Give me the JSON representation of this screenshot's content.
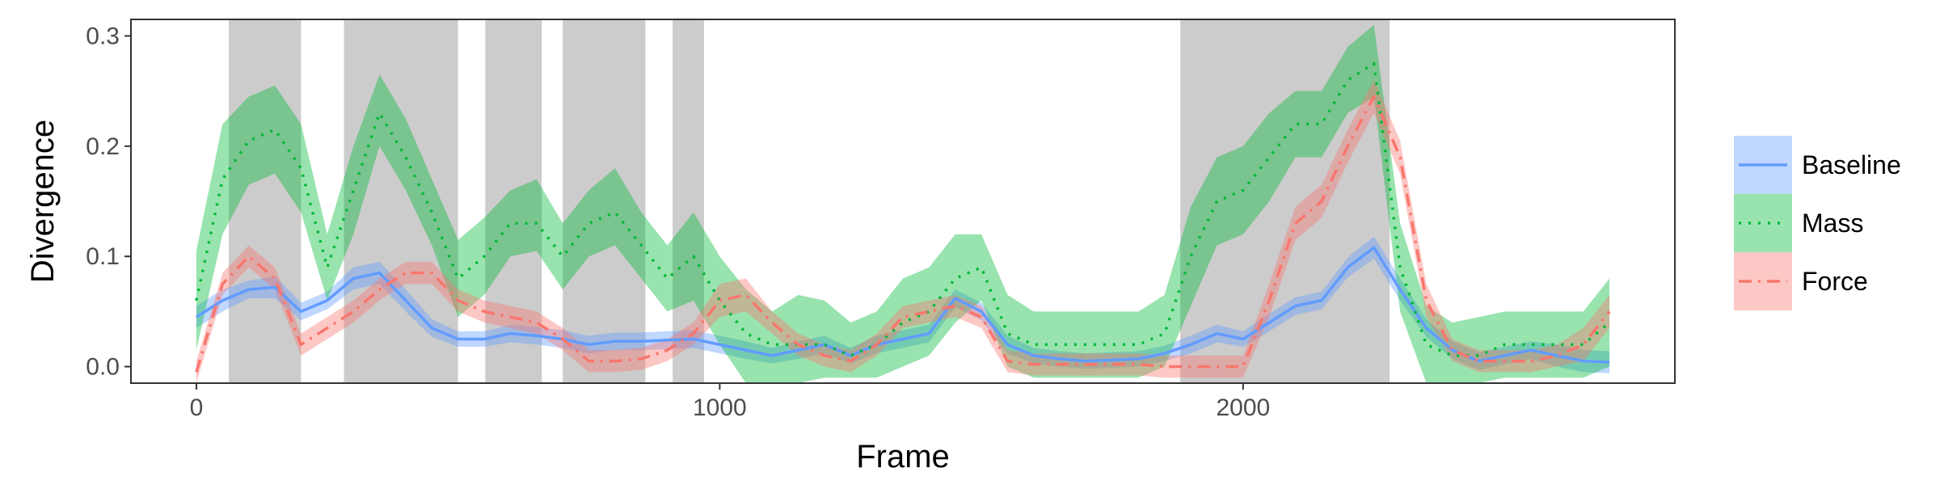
{
  "chart_data": {
    "type": "line",
    "xlabel": "Frame",
    "ylabel": "Divergence",
    "xlim": [
      -125,
      2825
    ],
    "ylim": [
      -0.015,
      0.315
    ],
    "x_ticks": [
      0,
      1000,
      2000
    ],
    "x_tick_labels": [
      "0",
      "1000",
      "2000"
    ],
    "y_ticks": [
      0.0,
      0.1,
      0.2,
      0.3
    ],
    "y_tick_labels": [
      "0.0",
      "0.1",
      "0.2",
      "0.3"
    ],
    "grid": false,
    "legend_position": "right",
    "shaded_regions": [
      [
        62,
        200
      ],
      [
        282,
        500
      ],
      [
        552,
        660
      ],
      [
        700,
        858
      ],
      [
        910,
        970
      ],
      [
        1880,
        2280
      ]
    ],
    "series": [
      {
        "name": "Baseline",
        "color": "#619CFF",
        "line_style": "solid",
        "x": [
          0,
          50,
          100,
          150,
          200,
          250,
          300,
          350,
          400,
          450,
          500,
          550,
          600,
          650,
          700,
          750,
          800,
          850,
          900,
          950,
          1000,
          1050,
          1100,
          1150,
          1200,
          1250,
          1300,
          1350,
          1400,
          1450,
          1500,
          1550,
          1600,
          1650,
          1700,
          1750,
          1800,
          1850,
          1900,
          1950,
          2000,
          2050,
          2100,
          2150,
          2200,
          2250,
          2300,
          2350,
          2400,
          2450,
          2500,
          2550,
          2600,
          2650,
          2700
        ],
        "y": [
          0.045,
          0.06,
          0.07,
          0.072,
          0.05,
          0.06,
          0.08,
          0.085,
          0.06,
          0.035,
          0.025,
          0.025,
          0.03,
          0.028,
          0.025,
          0.02,
          0.023,
          0.023,
          0.024,
          0.025,
          0.02,
          0.015,
          0.01,
          0.015,
          0.02,
          0.01,
          0.02,
          0.025,
          0.03,
          0.062,
          0.05,
          0.02,
          0.01,
          0.007,
          0.005,
          0.006,
          0.007,
          0.012,
          0.02,
          0.03,
          0.025,
          0.04,
          0.055,
          0.06,
          0.09,
          0.108,
          0.07,
          0.035,
          0.015,
          0.005,
          0.01,
          0.015,
          0.01,
          0.005,
          0.004
        ],
        "lower": [
          0.035,
          0.05,
          0.062,
          0.062,
          0.042,
          0.052,
          0.07,
          0.075,
          0.05,
          0.027,
          0.018,
          0.018,
          0.022,
          0.02,
          0.017,
          0.012,
          0.015,
          0.015,
          0.016,
          0.017,
          0.012,
          0.007,
          0.003,
          0.007,
          0.012,
          0.003,
          0.012,
          0.017,
          0.022,
          0.054,
          0.042,
          0.012,
          0.003,
          0.0,
          -0.002,
          -0.001,
          0.0,
          0.005,
          0.012,
          0.022,
          0.018,
          0.032,
          0.047,
          0.052,
          0.081,
          0.098,
          0.06,
          0.027,
          0.007,
          -0.003,
          0.002,
          0.007,
          0.0,
          -0.005,
          -0.006
        ],
        "upper": [
          0.055,
          0.07,
          0.078,
          0.082,
          0.058,
          0.068,
          0.09,
          0.095,
          0.07,
          0.043,
          0.032,
          0.032,
          0.038,
          0.036,
          0.033,
          0.028,
          0.031,
          0.031,
          0.032,
          0.033,
          0.028,
          0.023,
          0.017,
          0.023,
          0.028,
          0.017,
          0.028,
          0.033,
          0.038,
          0.07,
          0.058,
          0.028,
          0.017,
          0.014,
          0.012,
          0.013,
          0.014,
          0.019,
          0.028,
          0.038,
          0.032,
          0.048,
          0.063,
          0.068,
          0.099,
          0.118,
          0.08,
          0.043,
          0.023,
          0.013,
          0.018,
          0.023,
          0.02,
          0.015,
          0.014
        ]
      },
      {
        "name": "Mass",
        "color": "#00BA38",
        "line_style": "dotted",
        "x": [
          0,
          50,
          100,
          150,
          200,
          250,
          300,
          350,
          400,
          450,
          500,
          550,
          600,
          650,
          700,
          750,
          800,
          850,
          900,
          950,
          1000,
          1050,
          1100,
          1150,
          1200,
          1250,
          1300,
          1350,
          1400,
          1450,
          1500,
          1550,
          1600,
          1650,
          1700,
          1750,
          1800,
          1850,
          1900,
          1950,
          2000,
          2050,
          2100,
          2150,
          2200,
          2250,
          2300,
          2350,
          2400,
          2450,
          2500,
          2550,
          2600,
          2650,
          2700
        ],
        "y": [
          0.06,
          0.17,
          0.205,
          0.215,
          0.18,
          0.09,
          0.16,
          0.23,
          0.19,
          0.14,
          0.08,
          0.1,
          0.13,
          0.13,
          0.1,
          0.13,
          0.14,
          0.11,
          0.08,
          0.1,
          0.06,
          0.03,
          0.02,
          0.02,
          0.02,
          0.01,
          0.02,
          0.04,
          0.05,
          0.08,
          0.09,
          0.03,
          0.02,
          0.02,
          0.02,
          0.02,
          0.02,
          0.03,
          0.1,
          0.15,
          0.16,
          0.19,
          0.22,
          0.22,
          0.26,
          0.275,
          0.09,
          0.02,
          0.01,
          0.01,
          0.02,
          0.02,
          0.02,
          0.02,
          0.04
        ],
        "lower": [
          0.015,
          0.12,
          0.165,
          0.175,
          0.14,
          0.06,
          0.12,
          0.2,
          0.16,
          0.11,
          0.045,
          0.065,
          0.1,
          0.105,
          0.07,
          0.1,
          0.11,
          0.08,
          0.05,
          0.06,
          0.02,
          -0.015,
          -0.015,
          -0.015,
          -0.01,
          -0.01,
          -0.01,
          0.0,
          0.01,
          0.04,
          0.06,
          0.0,
          -0.01,
          -0.01,
          -0.01,
          -0.01,
          -0.01,
          0.0,
          0.055,
          0.11,
          0.12,
          0.15,
          0.19,
          0.19,
          0.23,
          0.245,
          0.05,
          -0.015,
          -0.015,
          -0.015,
          -0.01,
          -0.01,
          -0.01,
          -0.01,
          0.0
        ],
        "upper": [
          0.105,
          0.22,
          0.245,
          0.255,
          0.22,
          0.12,
          0.2,
          0.265,
          0.225,
          0.17,
          0.115,
          0.135,
          0.16,
          0.17,
          0.13,
          0.16,
          0.18,
          0.14,
          0.11,
          0.14,
          0.1,
          0.07,
          0.05,
          0.065,
          0.06,
          0.04,
          0.05,
          0.08,
          0.09,
          0.12,
          0.12,
          0.065,
          0.05,
          0.05,
          0.05,
          0.05,
          0.05,
          0.065,
          0.145,
          0.19,
          0.2,
          0.23,
          0.25,
          0.25,
          0.29,
          0.31,
          0.13,
          0.055,
          0.04,
          0.045,
          0.05,
          0.05,
          0.05,
          0.05,
          0.08
        ]
      },
      {
        "name": "Force",
        "color": "#F8766D",
        "line_style": "dashdot",
        "x": [
          0,
          50,
          100,
          150,
          200,
          250,
          300,
          350,
          400,
          450,
          500,
          550,
          600,
          650,
          700,
          750,
          800,
          850,
          900,
          950,
          1000,
          1050,
          1100,
          1150,
          1200,
          1250,
          1300,
          1350,
          1400,
          1450,
          1500,
          1550,
          1600,
          1650,
          1700,
          1750,
          1800,
          1850,
          1900,
          1950,
          2000,
          2050,
          2100,
          2150,
          2200,
          2250,
          2300,
          2350,
          2400,
          2450,
          2500,
          2550,
          2600,
          2650,
          2700
        ],
        "y": [
          -0.005,
          0.075,
          0.1,
          0.08,
          0.02,
          0.035,
          0.05,
          0.07,
          0.085,
          0.085,
          0.06,
          0.05,
          0.045,
          0.04,
          0.025,
          0.005,
          0.005,
          0.007,
          0.015,
          0.03,
          0.06,
          0.065,
          0.04,
          0.02,
          0.01,
          0.005,
          0.02,
          0.045,
          0.05,
          0.055,
          0.045,
          0.005,
          0.002,
          0.002,
          0.002,
          0.002,
          0.002,
          0.0,
          0.0,
          0.0,
          0.0,
          0.06,
          0.13,
          0.15,
          0.2,
          0.245,
          0.19,
          0.06,
          0.015,
          0.005,
          0.005,
          0.005,
          0.01,
          0.02,
          0.05
        ],
        "lower": [
          -0.015,
          0.065,
          0.09,
          0.07,
          0.01,
          0.025,
          0.04,
          0.06,
          0.075,
          0.075,
          0.05,
          0.04,
          0.035,
          0.03,
          0.015,
          -0.005,
          -0.005,
          -0.003,
          0.005,
          0.02,
          0.045,
          0.05,
          0.03,
          0.01,
          0.0,
          -0.005,
          0.01,
          0.035,
          0.04,
          0.045,
          0.035,
          -0.005,
          -0.008,
          -0.008,
          -0.008,
          -0.008,
          -0.008,
          -0.01,
          -0.01,
          -0.01,
          -0.01,
          0.045,
          0.115,
          0.135,
          0.185,
          0.23,
          0.175,
          0.045,
          0.005,
          -0.005,
          -0.005,
          -0.005,
          0.0,
          0.005,
          0.035
        ],
        "upper": [
          0.005,
          0.085,
          0.11,
          0.09,
          0.03,
          0.045,
          0.06,
          0.08,
          0.095,
          0.095,
          0.07,
          0.06,
          0.055,
          0.05,
          0.035,
          0.015,
          0.015,
          0.017,
          0.025,
          0.04,
          0.075,
          0.08,
          0.05,
          0.03,
          0.02,
          0.015,
          0.03,
          0.055,
          0.06,
          0.065,
          0.055,
          0.015,
          0.012,
          0.012,
          0.012,
          0.012,
          0.012,
          0.01,
          0.01,
          0.01,
          0.01,
          0.075,
          0.145,
          0.165,
          0.215,
          0.26,
          0.205,
          0.075,
          0.025,
          0.015,
          0.015,
          0.015,
          0.02,
          0.035,
          0.065
        ]
      }
    ]
  }
}
